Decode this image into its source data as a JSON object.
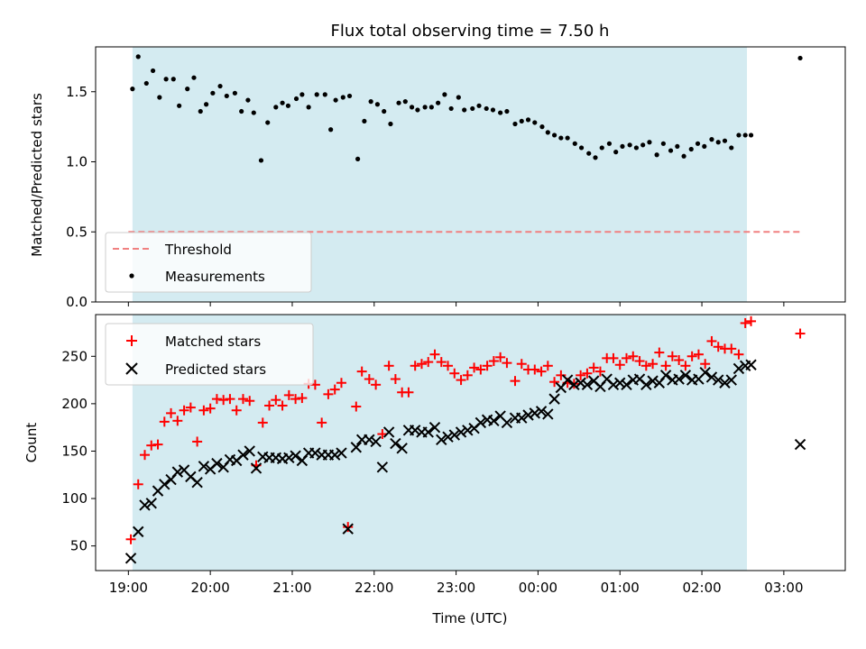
{
  "chart_data": [
    {
      "type": "scatter",
      "title": "Flux total observing time = 7.50 h",
      "xlabel": "",
      "ylabel": "Matched/Predicted stars",
      "ylim": [
        0,
        1.82
      ],
      "yticks": [
        0.0,
        0.5,
        1.0,
        1.5
      ],
      "ytick_labels": [
        "0.0",
        "0.5",
        "1.0",
        "1.5"
      ],
      "grid": false,
      "legend_position": "lower-left",
      "shaded_region": {
        "x_start": 19.05,
        "x_end": 26.55,
        "color": "#d4ebf1"
      },
      "threshold": {
        "name": "Threshold",
        "value": 0.5,
        "x_start": 19.0,
        "x_end": 27.2,
        "color": "#f08080"
      },
      "series": [
        {
          "name": "Measurements",
          "color": "#000000",
          "marker": "dot",
          "x": [
            19.05,
            19.12,
            19.22,
            19.3,
            19.38,
            19.46,
            19.55,
            19.62,
            19.72,
            19.8,
            19.88,
            19.95,
            20.03,
            20.12,
            20.2,
            20.3,
            20.38,
            20.46,
            20.53,
            20.62,
            20.7,
            20.8,
            20.88,
            20.95,
            21.05,
            21.12,
            21.2,
            21.3,
            21.4,
            21.47,
            21.53,
            21.62,
            21.7,
            21.8,
            21.88,
            21.96,
            22.04,
            22.12,
            22.2,
            22.3,
            22.38,
            22.46,
            22.53,
            22.62,
            22.7,
            22.78,
            22.86,
            22.94,
            23.03,
            23.1,
            23.2,
            23.28,
            23.37,
            23.45,
            23.54,
            23.62,
            23.72,
            23.8,
            23.88,
            23.96,
            24.05,
            24.12,
            24.2,
            24.28,
            24.36,
            24.45,
            24.53,
            24.62,
            24.7,
            24.78,
            24.87,
            24.95,
            25.03,
            25.12,
            25.2,
            25.28,
            25.36,
            25.45,
            25.53,
            25.62,
            25.7,
            25.78,
            25.87,
            25.95,
            26.03,
            26.12,
            26.2,
            26.28,
            26.36,
            26.45,
            26.53,
            26.6,
            27.2
          ],
          "y": [
            1.52,
            1.75,
            1.56,
            1.65,
            1.46,
            1.59,
            1.59,
            1.4,
            1.52,
            1.6,
            1.36,
            1.41,
            1.49,
            1.54,
            1.47,
            1.49,
            1.36,
            1.44,
            1.35,
            1.01,
            1.28,
            1.39,
            1.42,
            1.4,
            1.45,
            1.48,
            1.39,
            1.48,
            1.48,
            1.23,
            1.44,
            1.46,
            1.47,
            1.02,
            1.29,
            1.43,
            1.41,
            1.36,
            1.27,
            1.42,
            1.43,
            1.39,
            1.37,
            1.39,
            1.39,
            1.42,
            1.48,
            1.38,
            1.46,
            1.37,
            1.38,
            1.4,
            1.38,
            1.37,
            1.35,
            1.36,
            1.27,
            1.29,
            1.3,
            1.28,
            1.25,
            1.21,
            1.19,
            1.17,
            1.17,
            1.13,
            1.1,
            1.06,
            1.03,
            1.1,
            1.13,
            1.07,
            1.11,
            1.12,
            1.1,
            1.12,
            1.14,
            1.05,
            1.13,
            1.08,
            1.11,
            1.04,
            1.09,
            1.13,
            1.11,
            1.16,
            1.14,
            1.15,
            1.1,
            1.19,
            1.19,
            1.19,
            1.74
          ]
        }
      ]
    },
    {
      "type": "scatter",
      "title": "",
      "xlabel": "Time (UTC)",
      "ylabel": "Count",
      "ylim": [
        24,
        294
      ],
      "yticks": [
        50,
        100,
        150,
        200,
        250
      ],
      "ytick_labels": [
        "50",
        "100",
        "150",
        "200",
        "250"
      ],
      "xlim": [
        18.6,
        27.75
      ],
      "xticks": [
        19,
        20,
        21,
        22,
        23,
        24,
        25,
        26,
        27
      ],
      "xtick_labels": [
        "19:00",
        "20:00",
        "21:00",
        "22:00",
        "23:00",
        "00:00",
        "01:00",
        "02:00",
        "03:00"
      ],
      "grid": false,
      "legend_position": "upper-left",
      "shaded_region": {
        "x_start": 19.05,
        "x_end": 26.55,
        "color": "#d4ebf1"
      },
      "series": [
        {
          "name": "Matched stars",
          "color": "#ff0000",
          "marker": "plus",
          "x": [
            19.03,
            19.12,
            19.2,
            19.28,
            19.36,
            19.44,
            19.52,
            19.6,
            19.68,
            19.76,
            19.84,
            19.92,
            20.0,
            20.08,
            20.16,
            20.24,
            20.32,
            20.4,
            20.48,
            20.56,
            20.64,
            20.72,
            20.8,
            20.88,
            20.96,
            21.04,
            21.12,
            21.2,
            21.28,
            21.36,
            21.44,
            21.52,
            21.6,
            21.68,
            21.78,
            21.85,
            21.94,
            22.02,
            22.1,
            22.18,
            22.26,
            22.34,
            22.42,
            22.5,
            22.58,
            22.66,
            22.74,
            22.82,
            22.9,
            22.98,
            23.06,
            23.14,
            23.22,
            23.3,
            23.38,
            23.46,
            23.54,
            23.62,
            23.72,
            23.8,
            23.88,
            23.96,
            24.04,
            24.12,
            24.2,
            24.28,
            24.36,
            24.44,
            24.52,
            24.6,
            24.68,
            24.76,
            24.84,
            24.92,
            25.0,
            25.08,
            25.16,
            25.24,
            25.32,
            25.4,
            25.48,
            25.56,
            25.64,
            25.72,
            25.8,
            25.88,
            25.96,
            26.04,
            26.12,
            26.2,
            26.28,
            26.36,
            26.45,
            26.53,
            26.6,
            27.2
          ],
          "y": [
            57,
            115,
            146,
            156,
            157,
            181,
            190,
            182,
            193,
            196,
            160,
            193,
            195,
            205,
            204,
            205,
            193,
            205,
            203,
            135,
            180,
            198,
            204,
            198,
            209,
            205,
            206,
            221,
            220,
            180,
            210,
            215,
            222,
            70,
            197,
            234,
            226,
            220,
            168,
            240,
            226,
            212,
            212,
            240,
            242,
            244,
            252,
            244,
            240,
            232,
            225,
            230,
            238,
            236,
            240,
            245,
            249,
            243,
            224,
            242,
            236,
            236,
            234,
            240,
            223,
            230,
            222,
            221,
            230,
            232,
            238,
            234,
            248,
            248,
            241,
            248,
            250,
            245,
            240,
            242,
            254,
            240,
            250,
            246,
            240,
            250,
            252,
            242,
            266,
            260,
            258,
            258,
            252,
            285,
            287,
            274
          ]
        },
        {
          "name": "Predicted stars",
          "color": "#000000",
          "marker": "x",
          "x": [
            19.03,
            19.12,
            19.2,
            19.28,
            19.36,
            19.44,
            19.52,
            19.6,
            19.68,
            19.76,
            19.84,
            19.92,
            20.0,
            20.08,
            20.16,
            20.24,
            20.32,
            20.4,
            20.48,
            20.56,
            20.64,
            20.72,
            20.8,
            20.88,
            20.96,
            21.04,
            21.12,
            21.2,
            21.28,
            21.36,
            21.44,
            21.52,
            21.6,
            21.68,
            21.78,
            21.85,
            21.94,
            22.02,
            22.1,
            22.18,
            22.26,
            22.34,
            22.42,
            22.5,
            22.58,
            22.66,
            22.74,
            22.82,
            22.9,
            22.98,
            23.06,
            23.14,
            23.22,
            23.3,
            23.38,
            23.46,
            23.54,
            23.62,
            23.72,
            23.8,
            23.88,
            23.96,
            24.04,
            24.12,
            24.2,
            24.28,
            24.36,
            24.44,
            24.52,
            24.6,
            24.68,
            24.76,
            24.84,
            24.92,
            25.0,
            25.08,
            25.16,
            25.24,
            25.32,
            25.4,
            25.48,
            25.56,
            25.64,
            25.72,
            25.8,
            25.88,
            25.96,
            26.04,
            26.12,
            26.2,
            26.28,
            26.36,
            26.45,
            26.53,
            26.6,
            27.2
          ],
          "y": [
            37,
            65,
            93,
            95,
            108,
            115,
            120,
            128,
            130,
            123,
            117,
            134,
            131,
            137,
            133,
            141,
            140,
            146,
            150,
            132,
            144,
            143,
            143,
            142,
            143,
            145,
            140,
            148,
            148,
            146,
            146,
            146,
            148,
            68,
            154,
            162,
            162,
            160,
            133,
            170,
            158,
            153,
            172,
            172,
            170,
            170,
            175,
            162,
            165,
            167,
            170,
            172,
            174,
            180,
            183,
            182,
            187,
            180,
            185,
            185,
            188,
            190,
            192,
            189,
            205,
            217,
            225,
            220,
            222,
            220,
            224,
            218,
            226,
            220,
            222,
            220,
            225,
            226,
            220,
            224,
            222,
            230,
            225,
            226,
            230,
            225,
            226,
            233,
            228,
            225,
            222,
            225,
            237,
            240,
            241,
            157
          ]
        }
      ]
    }
  ]
}
